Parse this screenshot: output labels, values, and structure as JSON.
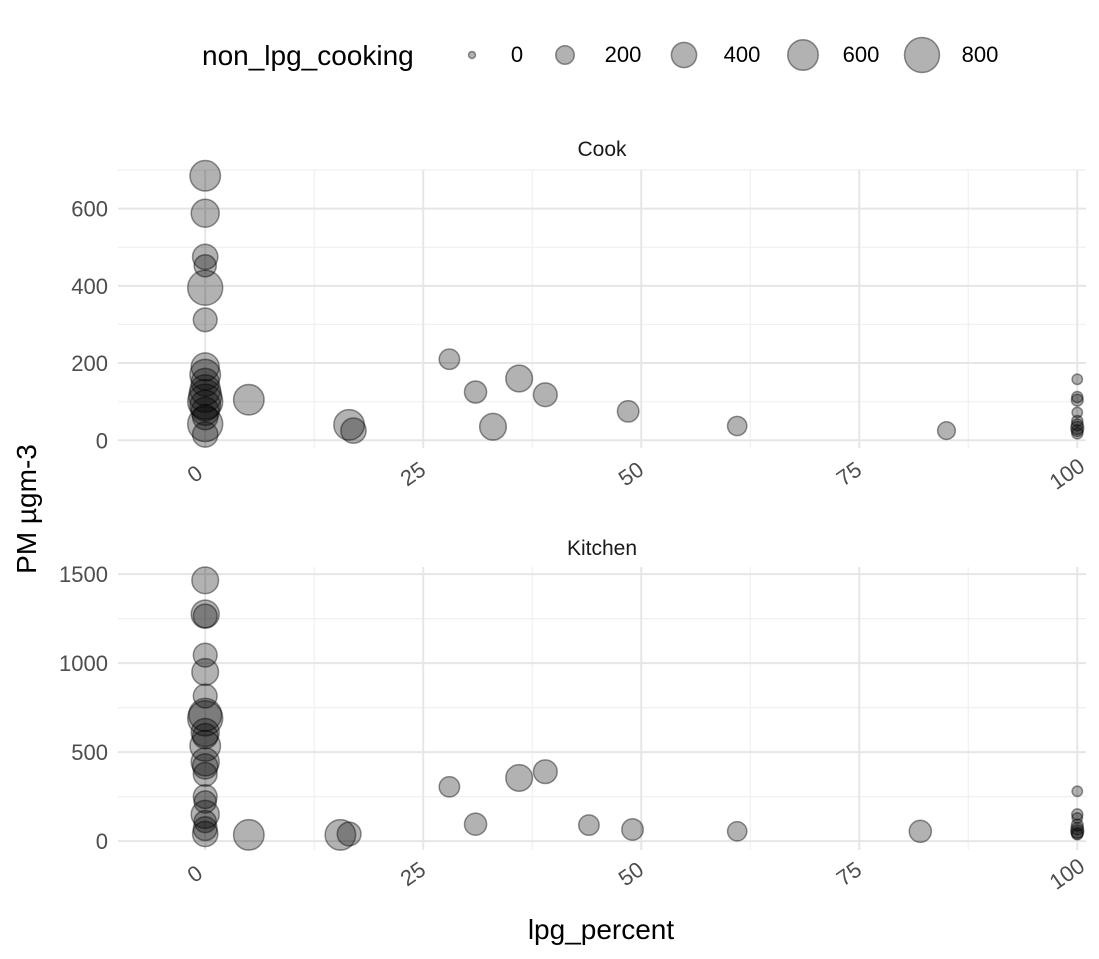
{
  "legend": {
    "title": "non_lpg_cooking",
    "labels": [
      "0",
      "200",
      "400",
      "600",
      "800"
    ],
    "values": [
      0,
      200,
      400,
      600,
      800
    ]
  },
  "axes": {
    "xlabel": "lpg_percent",
    "ylabel": "PM µgm-3"
  },
  "chart_data": {
    "type": "scatter",
    "xlabel": "lpg_percent",
    "ylabel": "PM µgm-3",
    "size_variable": "non_lpg_cooking",
    "size_legend": [
      0,
      200,
      400,
      600,
      800
    ],
    "grid": true,
    "legend_position": "top",
    "xlim": [
      -10,
      101
    ],
    "x_ticks": [
      0,
      25,
      50,
      75,
      100
    ],
    "x_tick_labels": [
      "0",
      "25",
      "50",
      "75",
      "100"
    ],
    "panels": [
      {
        "strip": "Cook",
        "ylim": [
          -20,
          700
        ],
        "y_ticks": [
          0,
          200,
          400,
          600
        ],
        "y_tick_labels": [
          "0",
          "200",
          "400",
          "600"
        ],
        "points": [
          {
            "x": 0,
            "y": 685,
            "s": 600
          },
          {
            "x": 0,
            "y": 588,
            "s": 500
          },
          {
            "x": 0,
            "y": 475,
            "s": 400
          },
          {
            "x": 0,
            "y": 452,
            "s": 300
          },
          {
            "x": 0,
            "y": 395,
            "s": 800
          },
          {
            "x": 0,
            "y": 312,
            "s": 350
          },
          {
            "x": 0,
            "y": 190,
            "s": 500
          },
          {
            "x": 0,
            "y": 170,
            "s": 600
          },
          {
            "x": 0,
            "y": 150,
            "s": 500
          },
          {
            "x": 0,
            "y": 130,
            "s": 600
          },
          {
            "x": 0,
            "y": 115,
            "s": 700
          },
          {
            "x": 0,
            "y": 100,
            "s": 800
          },
          {
            "x": 0,
            "y": 90,
            "s": 600
          },
          {
            "x": 0,
            "y": 75,
            "s": 500
          },
          {
            "x": 0,
            "y": 60,
            "s": 400
          },
          {
            "x": 0,
            "y": 42,
            "s": 800
          },
          {
            "x": 0,
            "y": 15,
            "s": 400
          },
          {
            "x": 5,
            "y": 105,
            "s": 600
          },
          {
            "x": 16.5,
            "y": 40,
            "s": 600
          },
          {
            "x": 17,
            "y": 25,
            "s": 400
          },
          {
            "x": 28,
            "y": 210,
            "s": 250
          },
          {
            "x": 31,
            "y": 125,
            "s": 300
          },
          {
            "x": 33,
            "y": 35,
            "s": 450
          },
          {
            "x": 36,
            "y": 160,
            "s": 450
          },
          {
            "x": 39,
            "y": 118,
            "s": 350
          },
          {
            "x": 48.5,
            "y": 75,
            "s": 280
          },
          {
            "x": 61,
            "y": 37,
            "s": 220
          },
          {
            "x": 85,
            "y": 25,
            "s": 180
          },
          {
            "x": 100,
            "y": 158,
            "s": 40
          },
          {
            "x": 100,
            "y": 112,
            "s": 50
          },
          {
            "x": 100,
            "y": 104,
            "s": 60
          },
          {
            "x": 100,
            "y": 72,
            "s": 40
          },
          {
            "x": 100,
            "y": 50,
            "s": 50
          },
          {
            "x": 100,
            "y": 40,
            "s": 60
          },
          {
            "x": 100,
            "y": 32,
            "s": 80
          },
          {
            "x": 100,
            "y": 25,
            "s": 60
          },
          {
            "x": 100,
            "y": 18,
            "s": 50
          }
        ]
      },
      {
        "strip": "Kitchen",
        "ylim": [
          -50,
          1540
        ],
        "y_ticks": [
          0,
          500,
          1000,
          1500
        ],
        "y_tick_labels": [
          "0",
          "500",
          "1000",
          "1500"
        ],
        "points": [
          {
            "x": 0,
            "y": 1465,
            "s": 450
          },
          {
            "x": 0,
            "y": 1275,
            "s": 500
          },
          {
            "x": 0,
            "y": 1265,
            "s": 350
          },
          {
            "x": 0,
            "y": 1045,
            "s": 350
          },
          {
            "x": 0,
            "y": 950,
            "s": 450
          },
          {
            "x": 0,
            "y": 815,
            "s": 350
          },
          {
            "x": 0,
            "y": 710,
            "s": 700
          },
          {
            "x": 0,
            "y": 690,
            "s": 800
          },
          {
            "x": 0,
            "y": 610,
            "s": 500
          },
          {
            "x": 0,
            "y": 590,
            "s": 400
          },
          {
            "x": 0,
            "y": 535,
            "s": 600
          },
          {
            "x": 0,
            "y": 445,
            "s": 500
          },
          {
            "x": 0,
            "y": 420,
            "s": 400
          },
          {
            "x": 0,
            "y": 375,
            "s": 350
          },
          {
            "x": 0,
            "y": 250,
            "s": 350
          },
          {
            "x": 0,
            "y": 220,
            "s": 300
          },
          {
            "x": 0,
            "y": 150,
            "s": 500
          },
          {
            "x": 0,
            "y": 110,
            "s": 300
          },
          {
            "x": 0,
            "y": 70,
            "s": 350
          },
          {
            "x": 0,
            "y": 40,
            "s": 400
          },
          {
            "x": 5,
            "y": 35,
            "s": 600
          },
          {
            "x": 15.5,
            "y": 35,
            "s": 600
          },
          {
            "x": 16.5,
            "y": 40,
            "s": 350
          },
          {
            "x": 28,
            "y": 305,
            "s": 250
          },
          {
            "x": 31,
            "y": 95,
            "s": 300
          },
          {
            "x": 36,
            "y": 355,
            "s": 450
          },
          {
            "x": 39,
            "y": 390,
            "s": 350
          },
          {
            "x": 44,
            "y": 90,
            "s": 250
          },
          {
            "x": 49,
            "y": 65,
            "s": 280
          },
          {
            "x": 61,
            "y": 55,
            "s": 220
          },
          {
            "x": 82,
            "y": 55,
            "s": 300
          },
          {
            "x": 100,
            "y": 280,
            "s": 40
          },
          {
            "x": 100,
            "y": 150,
            "s": 50
          },
          {
            "x": 100,
            "y": 130,
            "s": 40
          },
          {
            "x": 100,
            "y": 90,
            "s": 60
          },
          {
            "x": 100,
            "y": 70,
            "s": 70
          },
          {
            "x": 100,
            "y": 55,
            "s": 80
          },
          {
            "x": 100,
            "y": 45,
            "s": 60
          },
          {
            "x": 100,
            "y": 38,
            "s": 50
          }
        ]
      }
    ]
  }
}
